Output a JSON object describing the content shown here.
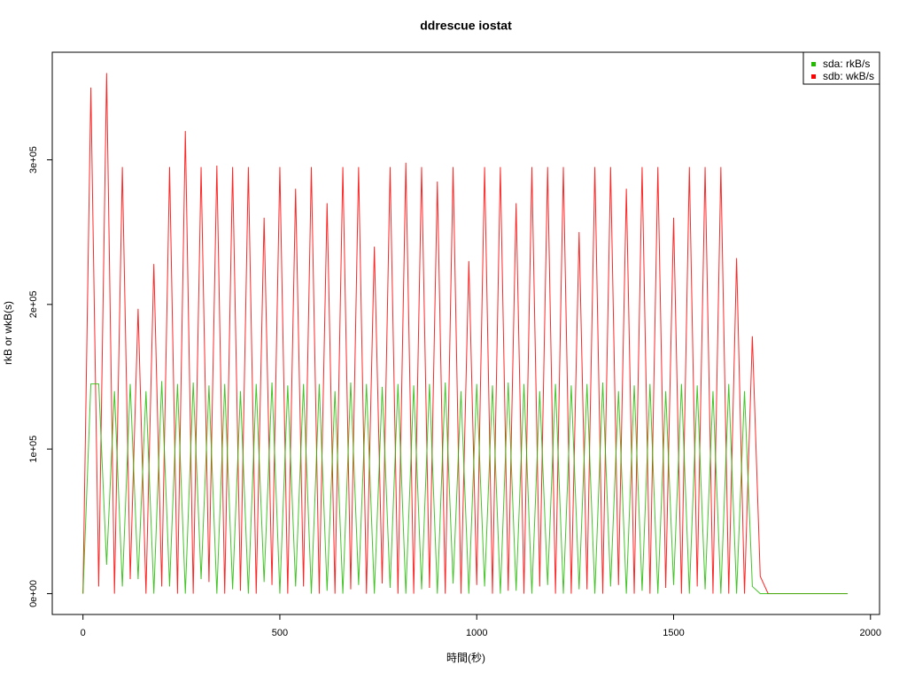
{
  "chart_data": {
    "type": "line",
    "title": "ddrescue iostat",
    "x_label": "時間(秒)",
    "y_label": "rkB or wkB(s)",
    "x": [
      0,
      20,
      40,
      60,
      80,
      100,
      120,
      140,
      160,
      180,
      200,
      220,
      240,
      260,
      280,
      300,
      320,
      340,
      360,
      380,
      400,
      420,
      440,
      460,
      480,
      500,
      520,
      540,
      560,
      580,
      600,
      620,
      640,
      660,
      680,
      700,
      720,
      740,
      760,
      780,
      800,
      820,
      840,
      860,
      880,
      900,
      920,
      940,
      960,
      980,
      1000,
      1020,
      1040,
      1060,
      1080,
      1100,
      1120,
      1140,
      1160,
      1180,
      1200,
      1220,
      1240,
      1260,
      1280,
      1300,
      1320,
      1340,
      1360,
      1380,
      1400,
      1420,
      1440,
      1460,
      1480,
      1500,
      1520,
      1540,
      1560,
      1580,
      1600,
      1620,
      1640,
      1660,
      1680,
      1700,
      1720,
      1740,
      1942
    ],
    "series": [
      {
        "name": "sda: rkB/s",
        "color": "#22bb00",
        "values": [
          0,
          145000,
          145000,
          20000,
          140000,
          5000,
          145000,
          10000,
          140000,
          0,
          147000,
          5000,
          145000,
          0,
          146000,
          10000,
          144000,
          0,
          145000,
          3000,
          140000,
          0,
          145000,
          8000,
          146000,
          0,
          144000,
          5000,
          145000,
          0,
          145000,
          2000,
          140000,
          0,
          146000,
          6000,
          145000,
          0,
          143000,
          4000,
          145000,
          0,
          144000,
          3000,
          145000,
          0,
          146000,
          7000,
          140000,
          0,
          145000,
          5000,
          144000,
          0,
          146000,
          2000,
          145000,
          0,
          140000,
          6000,
          145000,
          0,
          144000,
          3000,
          145000,
          0,
          146000,
          5000,
          140000,
          0,
          144000,
          2000,
          145000,
          0,
          140000,
          6000,
          145000,
          0,
          144000,
          3000,
          140000,
          0,
          145000,
          0,
          140000,
          5000,
          0,
          0,
          0
        ]
      },
      {
        "name": "sdb: wkB/s",
        "color": "#ff0000",
        "values": [
          0,
          350000,
          5000,
          360000,
          0,
          295000,
          10000,
          197000,
          0,
          228000,
          5000,
          295000,
          0,
          320000,
          0,
          295000,
          8000,
          296000,
          0,
          295000,
          2000,
          295000,
          0,
          260000,
          6000,
          295000,
          0,
          280000,
          5000,
          295000,
          0,
          270000,
          0,
          295000,
          3000,
          295000,
          0,
          240000,
          7000,
          295000,
          0,
          298000,
          0,
          295000,
          4000,
          285000,
          0,
          295000,
          0,
          230000,
          6000,
          295000,
          0,
          295000,
          2000,
          270000,
          0,
          295000,
          5000,
          295000,
          0,
          295000,
          0,
          250000,
          3000,
          295000,
          0,
          295000,
          6000,
          280000,
          0,
          295000,
          0,
          295000,
          4000,
          260000,
          0,
          295000,
          5000,
          295000,
          0,
          295000,
          0,
          232000,
          0,
          178000,
          12000,
          0,
          0
        ]
      }
    ],
    "xlim": [
      -78,
      2023
    ],
    "ylim": [
      -14400,
      374400
    ],
    "xticks": [
      0,
      500,
      1000,
      1500,
      2000
    ],
    "yticks": [
      {
        "value": 0,
        "label": "0e+00"
      },
      {
        "value": 100000,
        "label": "1e+05"
      },
      {
        "value": 200000,
        "label": "2e+05"
      },
      {
        "value": 300000,
        "label": "3e+05"
      }
    ],
    "legend_position": "topright"
  }
}
